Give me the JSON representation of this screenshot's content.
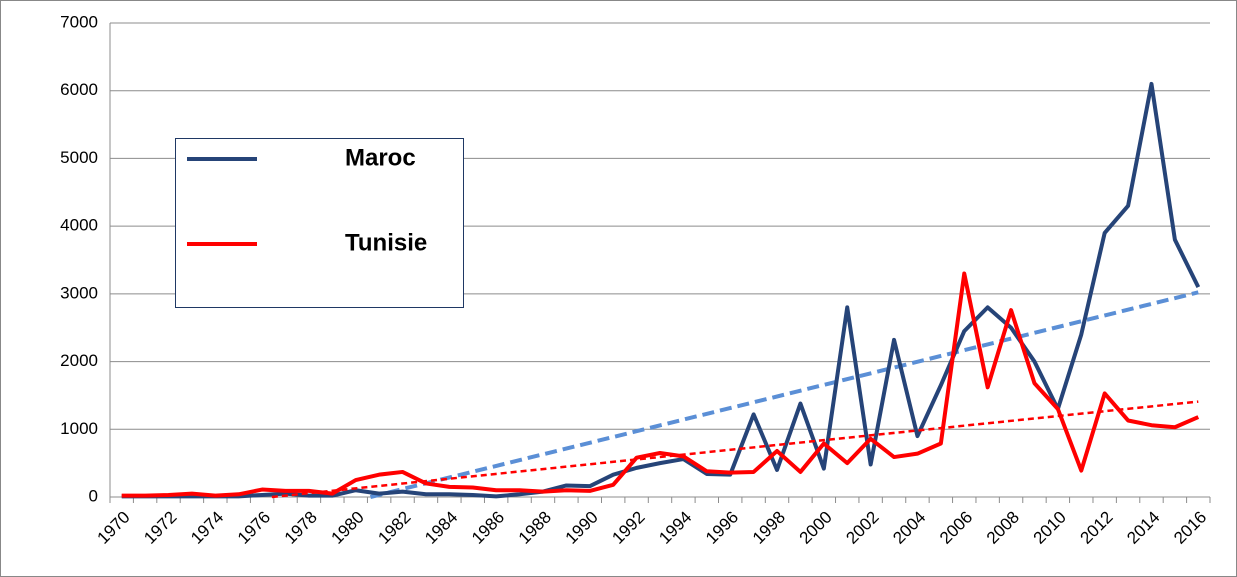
{
  "chart_data": {
    "type": "line",
    "categories": [
      "1970",
      null,
      "1972",
      null,
      "1974",
      null,
      "1976",
      null,
      "1978",
      null,
      "1980",
      null,
      "1982",
      null,
      "1984",
      null,
      "1986",
      null,
      "1988",
      null,
      "1990",
      null,
      "1992",
      null,
      "1994",
      null,
      "1996",
      null,
      "1998",
      null,
      "2000",
      null,
      "2002",
      null,
      "2004",
      null,
      "2006",
      null,
      "2008",
      null,
      "2010",
      null,
      "2012",
      null,
      "2014",
      null,
      "2016"
    ],
    "series": [
      {
        "name": "Maroc",
        "color": "#264478",
        "trend_color": "#5b8fd6",
        "values": [
          10,
          10,
          10,
          10,
          10,
          10,
          30,
          50,
          20,
          20,
          100,
          50,
          80,
          40,
          40,
          30,
          10,
          40,
          80,
          170,
          160,
          330,
          430,
          500,
          560,
          340,
          330,
          1220,
          400,
          1380,
          420,
          2800,
          480,
          2320,
          900,
          1650,
          2450,
          2800,
          2500,
          2000,
          1300,
          2400,
          3900,
          4300,
          6100,
          3800,
          3100
        ]
      },
      {
        "name": "Tunisie",
        "color": "#ff0000",
        "trend_color": "#ff0000",
        "values": [
          20,
          20,
          30,
          50,
          20,
          40,
          110,
          90,
          90,
          50,
          250,
          330,
          370,
          200,
          150,
          140,
          100,
          100,
          80,
          100,
          90,
          180,
          580,
          650,
          600,
          380,
          360,
          370,
          680,
          370,
          790,
          500,
          860,
          590,
          640,
          790,
          3300,
          1620,
          2760,
          1680,
          1300,
          390,
          1530,
          1130,
          1060,
          1030,
          1180
        ]
      }
    ],
    "trendline": true,
    "ylim": [
      0,
      7000
    ],
    "yticks": [
      0,
      1000,
      2000,
      3000,
      4000,
      5000,
      6000,
      7000
    ],
    "grid": true,
    "legend": "left"
  }
}
